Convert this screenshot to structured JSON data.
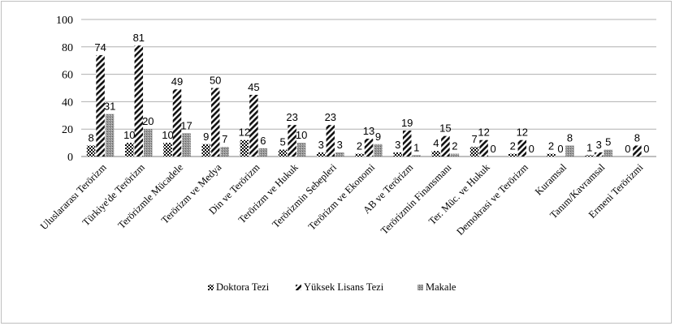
{
  "chart_data": {
    "type": "bar",
    "title": "",
    "xlabel": "",
    "ylabel": "",
    "ylim": [
      0,
      100
    ],
    "yticks": [
      0,
      20,
      40,
      60,
      80,
      100
    ],
    "grid": true,
    "legend_position": "bottom",
    "categories": [
      "Uluslararası Terörizm",
      "Türkiye'de Terörizm",
      "Terörizmle Mücadele",
      "Terörizm ve Medya",
      "Din ve Terörizm",
      "Terörizm ve Hukuk",
      "Terörizmin Sebepleri",
      "Terörizm ve Ekonomi",
      "AB ve Terörizm",
      "Terörizmin Finansmanı",
      "Ter. Müc. ve Hukuk",
      "Demokrasi ve Terörizm",
      "Kuramsal",
      "Tanım/Kavramsal",
      "Ermeni Terörizmi"
    ],
    "series": [
      {
        "name": "Doktora Tezi",
        "values": [
          8,
          10,
          10,
          9,
          12,
          5,
          3,
          2,
          3,
          4,
          7,
          2,
          2,
          1,
          0
        ]
      },
      {
        "name": "Yüksek Lisans Tezi",
        "values": [
          74,
          81,
          49,
          50,
          45,
          23,
          23,
          13,
          19,
          15,
          12,
          12,
          0,
          3,
          8
        ]
      },
      {
        "name": "Makale",
        "values": [
          31,
          20,
          17,
          7,
          6,
          10,
          3,
          9,
          1,
          2,
          0,
          0,
          8,
          5,
          0
        ]
      }
    ]
  }
}
